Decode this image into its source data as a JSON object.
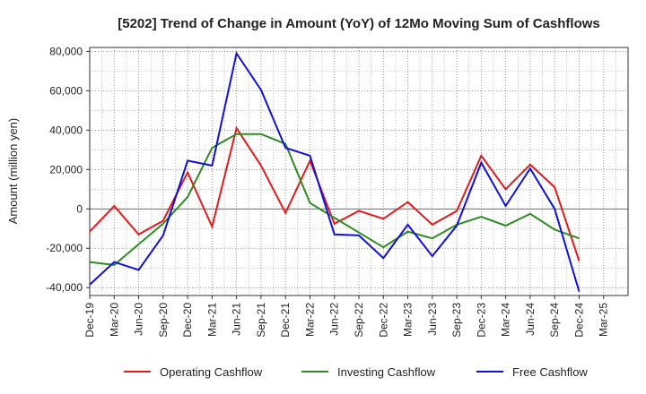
{
  "chart_data": {
    "type": "line",
    "title": "[5202]  Trend of Change in Amount (YoY) of 12Mo Moving Sum of Cashflows",
    "ylabel": "Amount (million yen)",
    "xlabel": "",
    "ylim": [
      -44000,
      82000
    ],
    "yticks": [
      -40000,
      -20000,
      0,
      20000,
      40000,
      60000,
      80000
    ],
    "ytick_labels": [
      "-40,000",
      "-20,000",
      "0",
      "20,000",
      "40,000",
      "60,000",
      "80,000"
    ],
    "categories": [
      "Dec-19",
      "Mar-20",
      "Jun-20",
      "Sep-20",
      "Dec-20",
      "Mar-21",
      "Jun-21",
      "Sep-21",
      "Dec-21",
      "Mar-22",
      "Jun-22",
      "Sep-22",
      "Dec-22",
      "Mar-23",
      "Jun-23",
      "Sep-23",
      "Dec-23",
      "Mar-24",
      "Jun-24",
      "Sep-24",
      "Dec-24",
      "Mar-25"
    ],
    "grid": true,
    "legend_position": "bottom",
    "series": [
      {
        "name": "Operating Cashflow",
        "color": "#e41a1c",
        "values": [
          -11500,
          1500,
          -13000,
          -6000,
          18500,
          -9000,
          41000,
          22000,
          -2000,
          24500,
          -7500,
          -1000,
          -5000,
          3500,
          -8000,
          -1000,
          27000,
          10000,
          22500,
          11000,
          -26500,
          null
        ]
      },
      {
        "name": "Investing Cashflow",
        "color": "#2e8b22",
        "values": [
          -27000,
          -28500,
          -18000,
          -7500,
          6000,
          31000,
          38000,
          38000,
          33000,
          3000,
          -4500,
          -12000,
          -19500,
          -11500,
          -15000,
          -8000,
          -4000,
          -8500,
          -2500,
          -10500,
          -15000,
          null
        ]
      },
      {
        "name": "Free Cashflow",
        "color": "#1010d8",
        "values": [
          -38500,
          -27000,
          -31000,
          -13500,
          24500,
          22000,
          79000,
          60500,
          31000,
          27000,
          -13000,
          -13500,
          -25000,
          -8000,
          -24000,
          -8500,
          23500,
          1500,
          20500,
          0,
          -42000,
          null
        ]
      }
    ]
  }
}
